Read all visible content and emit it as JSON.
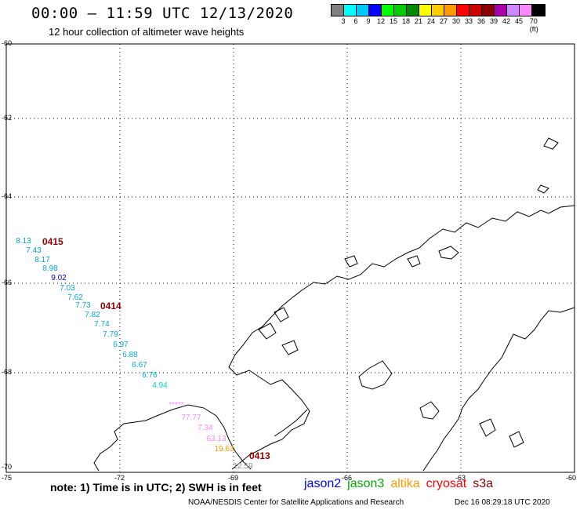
{
  "title": "00:00 – 11:59 UTC 12/13/2020",
  "subtitle": "12 hour collection of altimeter wave heights",
  "colorbar": {
    "colors": [
      "#808080",
      "#00ffff",
      "#00c8ff",
      "#0000ff",
      "#00ff00",
      "#00cc00",
      "#008800",
      "#ffff00",
      "#ffcc00",
      "#ff9900",
      "#ff0000",
      "#cc0000",
      "#880000",
      "#aa00aa",
      "#cc88ff",
      "#ff88ff",
      "#000000"
    ],
    "labels": [
      "3",
      "6",
      "9",
      "12",
      "15",
      "18",
      "21",
      "24",
      "27",
      "30",
      "33",
      "36",
      "39",
      "42",
      "45",
      "70 (ft)"
    ]
  },
  "axes": {
    "lat_labels": [
      "-60",
      "-62",
      "-64",
      "-66",
      "-68",
      "-70"
    ],
    "lon_labels": [
      "-75",
      "-72",
      "-69",
      "-66",
      "-63",
      "-60"
    ]
  },
  "swh_points": [
    {
      "value": "8.13",
      "color": "#00aadd"
    },
    {
      "value": "7.43",
      "color": "#00aadd"
    },
    {
      "value": "8.17",
      "color": "#00aadd"
    },
    {
      "value": "8.98",
      "color": "#00aadd"
    },
    {
      "value": "9.02",
      "color": "#0000dd"
    },
    {
      "value": "7.03",
      "color": "#00aadd"
    },
    {
      "value": "7.62",
      "color": "#00aadd"
    },
    {
      "value": "7.73",
      "color": "#00aadd"
    },
    {
      "value": "7.82",
      "color": "#00aadd"
    },
    {
      "value": "7.74",
      "color": "#00aadd"
    },
    {
      "value": "7.79",
      "color": "#00aadd"
    },
    {
      "value": "6.97",
      "color": "#00aadd"
    },
    {
      "value": "6.88",
      "color": "#00aadd"
    },
    {
      "value": "6.67",
      "color": "#00aadd"
    },
    {
      "value": "6.76",
      "color": "#00aadd"
    },
    {
      "value": "4.94",
      "color": "#00ccdd"
    },
    {
      "value": "*****",
      "color": "#ff88ff"
    },
    {
      "value": "77.77",
      "color": "#ff88ff"
    },
    {
      "value": "7.34",
      "color": "#ff88ff"
    },
    {
      "value": "63.13",
      "color": "#ff88ff"
    },
    {
      "value": "19.63",
      "color": "#ff9900"
    },
    {
      "value": "12.59",
      "color": "#888888"
    }
  ],
  "time_tags": [
    "0415",
    "0414",
    "0413"
  ],
  "note": "note:  1) Time is in UTC;  2) SWH is in feet",
  "missions": [
    {
      "name": "jason2",
      "color": "#0000ff"
    },
    {
      "name": "jason3",
      "color": "#00aa00"
    },
    {
      "name": "altika",
      "color": "#ff9900"
    },
    {
      "name": "cryosat",
      "color": "#ff0000"
    },
    {
      "name": "s3a",
      "color": "#880000"
    }
  ],
  "footer_left": "NOAA/NESDIS Center for Satellite Applications and Research",
  "footer_right": "Dec 16 08:29:18 UTC 2020"
}
